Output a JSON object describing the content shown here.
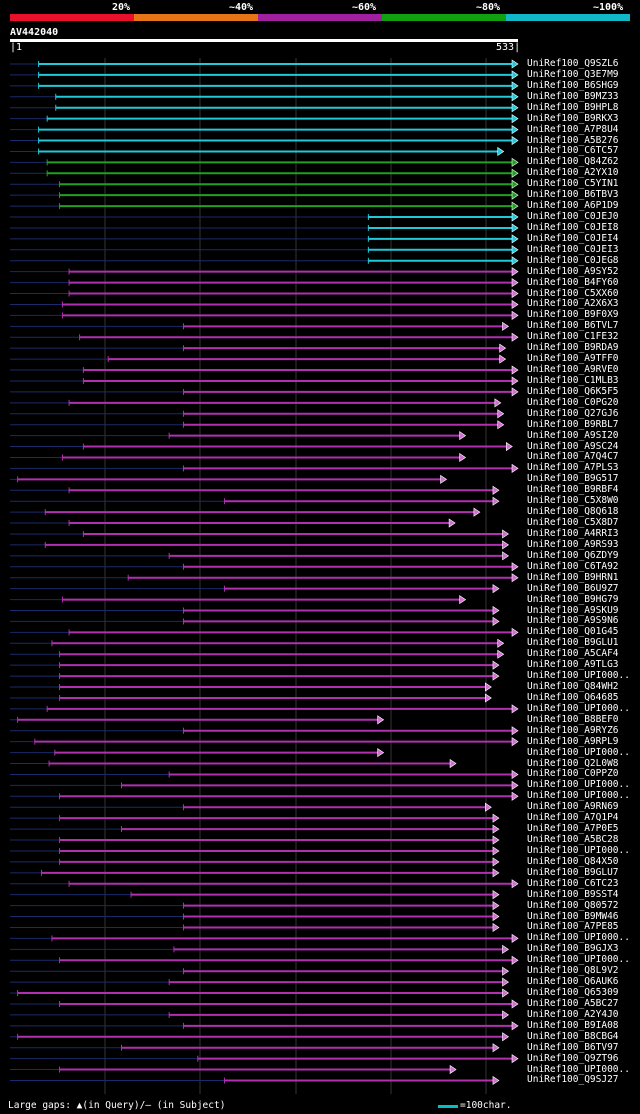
{
  "legend": {
    "labels": [
      "20%",
      "~40%",
      "~60%",
      "~80%",
      "~100%"
    ],
    "colors": [
      "#e8102a",
      "#e87418",
      "#a020a0",
      "#10a010",
      "#10b8c8"
    ]
  },
  "query": {
    "id": "AV442040",
    "start": "1",
    "end": "533",
    "length": 533
  },
  "hits": [
    {
      "name": "UniRef100_Q9SZL6",
      "color": "cyan",
      "start": 30,
      "end": 533,
      "arrow": "cyan"
    },
    {
      "name": "UniRef100_Q3E7M9",
      "color": "cyan",
      "start": 30,
      "end": 533,
      "arrow": "cyan"
    },
    {
      "name": "UniRef100_B6SHG9",
      "color": "cyan",
      "start": 30,
      "end": 533,
      "arrow": "cyan"
    },
    {
      "name": "UniRef100_B9MZ33",
      "color": "cyan",
      "start": 48,
      "end": 533,
      "arrow": "cyan"
    },
    {
      "name": "UniRef100_B9HPL8",
      "color": "cyan",
      "start": 48,
      "end": 533,
      "arrow": "cyan"
    },
    {
      "name": "UniRef100_B9RKX3",
      "color": "cyan",
      "start": 39,
      "end": 533,
      "arrow": "cyan"
    },
    {
      "name": "UniRef100_A7P8U4",
      "color": "cyan",
      "start": 30,
      "end": 533,
      "arrow": "cyan"
    },
    {
      "name": "UniRef100_A5B276",
      "color": "cyan",
      "start": 30,
      "end": 533,
      "arrow": "cyan"
    },
    {
      "name": "UniRef100_C6TC57",
      "color": "cyan",
      "start": 30,
      "end": 518,
      "arrow": "cyan"
    },
    {
      "name": "UniRef100_Q84Z62",
      "color": "green",
      "start": 39,
      "end": 533,
      "arrow": "green"
    },
    {
      "name": "UniRef100_A2YX10",
      "color": "green",
      "start": 39,
      "end": 533,
      "arrow": "green"
    },
    {
      "name": "UniRef100_C5YIN1",
      "color": "green",
      "start": 52,
      "end": 533,
      "arrow": "green"
    },
    {
      "name": "UniRef100_B6TBV3",
      "color": "green",
      "start": 52,
      "end": 533,
      "arrow": "green"
    },
    {
      "name": "UniRef100_A6P1D9",
      "color": "green",
      "start": 52,
      "end": 533,
      "arrow": "green"
    },
    {
      "name": "UniRef100_C0JEJ0",
      "color": "cyan",
      "start": 376,
      "end": 533,
      "arrow": "cyan"
    },
    {
      "name": "UniRef100_C0JEI8",
      "color": "cyan",
      "start": 376,
      "end": 533,
      "arrow": "cyan"
    },
    {
      "name": "UniRef100_C0JEI4",
      "color": "cyan",
      "start": 376,
      "end": 533,
      "arrow": "cyan"
    },
    {
      "name": "UniRef100_C0JEI3",
      "color": "cyan",
      "start": 376,
      "end": 533,
      "arrow": "cyan"
    },
    {
      "name": "UniRef100_C0JEG8",
      "color": "cyan",
      "start": 376,
      "end": 533,
      "arrow": "cyan"
    },
    {
      "name": "UniRef100_A9SY52",
      "color": "purple",
      "start": 62,
      "end": 533,
      "arrow": "purple"
    },
    {
      "name": "UniRef100_B4FY60",
      "color": "purple",
      "start": 62,
      "end": 533,
      "arrow": "purple"
    },
    {
      "name": "UniRef100_C5XX60",
      "color": "purple",
      "start": 62,
      "end": 533,
      "arrow": "purple"
    },
    {
      "name": "UniRef100_A2X6X3",
      "color": "purple",
      "start": 55,
      "end": 533,
      "arrow": "purple"
    },
    {
      "name": "UniRef100_B9F0X9",
      "color": "purple",
      "start": 55,
      "end": 533,
      "arrow": "purple"
    },
    {
      "name": "UniRef100_B6TVL7",
      "color": "purple",
      "start": 182,
      "end": 523,
      "arrow": "purple"
    },
    {
      "name": "UniRef100_C1FE32",
      "color": "purple",
      "start": 73,
      "end": 533,
      "arrow": "purple"
    },
    {
      "name": "UniRef100_B9RDA9",
      "color": "purple",
      "start": 182,
      "end": 520,
      "arrow": "purple"
    },
    {
      "name": "UniRef100_A9TFF0",
      "color": "purple",
      "start": 103,
      "end": 520,
      "arrow": "purple"
    },
    {
      "name": "UniRef100_A9RVE0",
      "color": "purple",
      "start": 77,
      "end": 533,
      "arrow": "purple"
    },
    {
      "name": "UniRef100_C1MLB3",
      "color": "purple",
      "start": 77,
      "end": 533,
      "arrow": "purple"
    },
    {
      "name": "UniRef100_Q6K5F5",
      "color": "purple",
      "start": 182,
      "end": 533,
      "arrow": "purple"
    },
    {
      "name": "UniRef100_C0PG20",
      "color": "purple",
      "start": 62,
      "end": 515,
      "arrow": "purple"
    },
    {
      "name": "UniRef100_Q27GJ6",
      "color": "purple",
      "start": 182,
      "end": 518,
      "arrow": "purple"
    },
    {
      "name": "UniRef100_B9RBL7",
      "color": "purple",
      "start": 182,
      "end": 518,
      "arrow": "purple"
    },
    {
      "name": "UniRef100_A9SI20",
      "color": "purple",
      "start": 167,
      "end": 478,
      "arrow": "purple"
    },
    {
      "name": "UniRef100_A9SC24",
      "color": "purple",
      "start": 77,
      "end": 527,
      "arrow": "purple"
    },
    {
      "name": "UniRef100_A7Q4C7",
      "color": "purple",
      "start": 55,
      "end": 478,
      "arrow": "purple"
    },
    {
      "name": "UniRef100_A7PLS3",
      "color": "purple",
      "start": 182,
      "end": 533,
      "arrow": "purple"
    },
    {
      "name": "UniRef100_B9G517",
      "color": "purple",
      "start": 8,
      "end": 458,
      "arrow": "purple"
    },
    {
      "name": "UniRef100_B9RBF4",
      "color": "purple",
      "start": 62,
      "end": 513,
      "arrow": "purple"
    },
    {
      "name": "UniRef100_C5X8W0",
      "color": "purple",
      "start": 225,
      "end": 513,
      "arrow": "purple"
    },
    {
      "name": "UniRef100_Q8Q618",
      "color": "purple",
      "start": 37,
      "end": 493,
      "arrow": "purple"
    },
    {
      "name": "UniRef100_C5X8D7",
      "color": "purple",
      "start": 62,
      "end": 467,
      "arrow": "purple"
    },
    {
      "name": "UniRef100_A4RRI3",
      "color": "purple",
      "start": 77,
      "end": 523,
      "arrow": "purple"
    },
    {
      "name": "UniRef100_A9RS93",
      "color": "purple",
      "start": 37,
      "end": 523,
      "arrow": "purple"
    },
    {
      "name": "UniRef100_Q6ZDY9",
      "color": "purple",
      "start": 167,
      "end": 523,
      "arrow": "purple"
    },
    {
      "name": "UniRef100_C6TA92",
      "color": "purple",
      "start": 182,
      "end": 533,
      "arrow": "purple"
    },
    {
      "name": "UniRef100_B9HRN1",
      "color": "purple",
      "start": 124,
      "end": 533,
      "arrow": "purple"
    },
    {
      "name": "UniRef100_B6U9Z7",
      "color": "purple",
      "start": 225,
      "end": 513,
      "arrow": "purple"
    },
    {
      "name": "UniRef100_B9HG79",
      "color": "purple",
      "start": 55,
      "end": 478,
      "arrow": "purple"
    },
    {
      "name": "UniRef100_A9SKU9",
      "color": "purple",
      "start": 182,
      "end": 513,
      "arrow": "purple"
    },
    {
      "name": "UniRef100_A9S9N6",
      "color": "purple",
      "start": 182,
      "end": 513,
      "arrow": "purple"
    },
    {
      "name": "UniRef100_Q01G45",
      "color": "purple",
      "start": 62,
      "end": 533,
      "arrow": "purple"
    },
    {
      "name": "UniRef100_B9GLU1",
      "color": "purple",
      "start": 44,
      "end": 518,
      "arrow": "purple"
    },
    {
      "name": "UniRef100_A5CAF4",
      "color": "purple",
      "start": 52,
      "end": 518,
      "arrow": "purple"
    },
    {
      "name": "UniRef100_A9TLG3",
      "color": "purple",
      "start": 52,
      "end": 513,
      "arrow": "purple"
    },
    {
      "name": "UniRef100_UPI000..",
      "color": "purple",
      "start": 52,
      "end": 513,
      "arrow": "purple"
    },
    {
      "name": "UniRef100_Q84WH2",
      "color": "purple",
      "start": 52,
      "end": 505,
      "arrow": "purple"
    },
    {
      "name": "UniRef100_Q64685",
      "color": "purple",
      "start": 52,
      "end": 505,
      "arrow": "purple"
    },
    {
      "name": "UniRef100_UPI000..",
      "color": "purple",
      "start": 39,
      "end": 533,
      "arrow": "purple"
    },
    {
      "name": "UniRef100_B8BEF0",
      "color": "purple",
      "start": 8,
      "end": 392,
      "arrow": "purple"
    },
    {
      "name": "UniRef100_A9RYZ6",
      "color": "purple",
      "start": 182,
      "end": 533,
      "arrow": "purple"
    },
    {
      "name": "UniRef100_A9RPL9",
      "color": "purple",
      "start": 26,
      "end": 533,
      "arrow": "purple"
    },
    {
      "name": "UniRef100_UPI000..",
      "color": "purple",
      "start": 47,
      "end": 392,
      "arrow": "purple"
    },
    {
      "name": "UniRef100_Q2L0W8",
      "color": "purple",
      "start": 41,
      "end": 468,
      "arrow": "purple"
    },
    {
      "name": "UniRef100_C0PPZ0",
      "color": "purple",
      "start": 167,
      "end": 533,
      "arrow": "purple"
    },
    {
      "name": "UniRef100_UPI000..",
      "color": "purple",
      "start": 117,
      "end": 533,
      "arrow": "purple"
    },
    {
      "name": "UniRef100_UPI000..",
      "color": "purple",
      "start": 52,
      "end": 533,
      "arrow": "purple"
    },
    {
      "name": "UniRef100_A9RN69",
      "color": "purple",
      "start": 182,
      "end": 505,
      "arrow": "purple"
    },
    {
      "name": "UniRef100_A7Q1P4",
      "color": "purple",
      "start": 52,
      "end": 513,
      "arrow": "purple"
    },
    {
      "name": "UniRef100_A7P0E5",
      "color": "purple",
      "start": 117,
      "end": 513,
      "arrow": "purple"
    },
    {
      "name": "UniRef100_A5BC28",
      "color": "purple",
      "start": 52,
      "end": 513,
      "arrow": "purple"
    },
    {
      "name": "UniRef100_UPI000..",
      "color": "purple",
      "start": 52,
      "end": 513,
      "arrow": "purple"
    },
    {
      "name": "UniRef100_Q84X50",
      "color": "purple",
      "start": 52,
      "end": 513,
      "arrow": "purple"
    },
    {
      "name": "UniRef100_B9GLU7",
      "color": "purple",
      "start": 33,
      "end": 513,
      "arrow": "purple"
    },
    {
      "name": "UniRef100_C6TC23",
      "color": "purple",
      "start": 62,
      "end": 533,
      "arrow": "purple"
    },
    {
      "name": "UniRef100_B9SST4",
      "color": "purple",
      "start": 127,
      "end": 513,
      "arrow": "purple"
    },
    {
      "name": "UniRef100_Q80572",
      "color": "purple",
      "start": 182,
      "end": 513,
      "arrow": "purple"
    },
    {
      "name": "UniRef100_B9MW46",
      "color": "purple",
      "start": 182,
      "end": 513,
      "arrow": "purple"
    },
    {
      "name": "UniRef100_A7PE85",
      "color": "purple",
      "start": 182,
      "end": 513,
      "arrow": "purple"
    },
    {
      "name": "UniRef100_UPI000..",
      "color": "purple",
      "start": 44,
      "end": 533,
      "arrow": "purple"
    },
    {
      "name": "UniRef100_B9GJX3",
      "color": "purple",
      "start": 172,
      "end": 523,
      "arrow": "purple"
    },
    {
      "name": "UniRef100_UPI000..",
      "color": "purple",
      "start": 52,
      "end": 533,
      "arrow": "purple"
    },
    {
      "name": "UniRef100_Q8L9V2",
      "color": "purple",
      "start": 182,
      "end": 523,
      "arrow": "purple"
    },
    {
      "name": "UniRef100_Q6AUK6",
      "color": "purple",
      "start": 167,
      "end": 523,
      "arrow": "purple"
    },
    {
      "name": "UniRef100_Q65309",
      "color": "purple",
      "start": 8,
      "end": 523,
      "arrow": "purple"
    },
    {
      "name": "UniRef100_A5BC27",
      "color": "purple",
      "start": 52,
      "end": 533,
      "arrow": "purple"
    },
    {
      "name": "UniRef100_A2Y4J0",
      "color": "purple",
      "start": 167,
      "end": 523,
      "arrow": "purple"
    },
    {
      "name": "UniRef100_B9IA08",
      "color": "purple",
      "start": 182,
      "end": 533,
      "arrow": "purple"
    },
    {
      "name": "UniRef100_B8CBG4",
      "color": "purple",
      "start": 8,
      "end": 523,
      "arrow": "purple"
    },
    {
      "name": "UniRef100_B6TV97",
      "color": "purple",
      "start": 117,
      "end": 513,
      "arrow": "purple"
    },
    {
      "name": "UniRef100_Q9ZT96",
      "color": "purple",
      "start": 197,
      "end": 533,
      "arrow": "purple"
    },
    {
      "name": "UniRef100_UPI000..",
      "color": "purple",
      "start": 52,
      "end": 468,
      "arrow": "purple"
    },
    {
      "name": "UniRef100_Q9SJ27",
      "color": "purple",
      "start": 225,
      "end": 513,
      "arrow": "purple"
    }
  ],
  "footer": {
    "gaps_label": "Large gaps:",
    "gaps_query": "(in Query)/",
    "gaps_subject": "(in Subject)",
    "scale_label": "=100char."
  }
}
